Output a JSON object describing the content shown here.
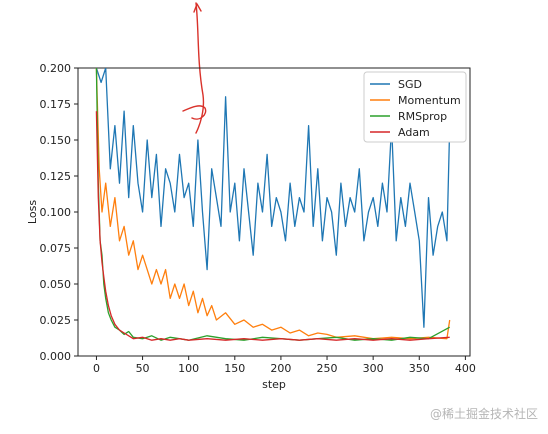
{
  "chart_data": {
    "type": "line",
    "title": "",
    "xlabel": "step",
    "ylabel": "Loss",
    "xlim": [
      -20,
      405
    ],
    "ylim": [
      0,
      0.2
    ],
    "xticks": [
      0,
      50,
      100,
      150,
      200,
      250,
      300,
      350,
      400
    ],
    "yticks": [
      0.0,
      0.025,
      0.05,
      0.075,
      0.1,
      0.125,
      0.15,
      0.175,
      0.2
    ],
    "ytick_labels": [
      "0.000",
      "0.025",
      "0.050",
      "0.075",
      "0.100",
      "0.125",
      "0.150",
      "0.175",
      "0.200"
    ],
    "grid": false,
    "legend_position": "top-right",
    "series": [
      {
        "name": "SGD",
        "color": "#1f77b4",
        "x": [
          0,
          5,
          10,
          15,
          20,
          25,
          30,
          35,
          40,
          45,
          50,
          55,
          60,
          65,
          70,
          75,
          80,
          85,
          90,
          95,
          100,
          105,
          110,
          115,
          120,
          125,
          130,
          135,
          140,
          145,
          150,
          155,
          160,
          165,
          170,
          175,
          180,
          185,
          190,
          195,
          200,
          205,
          210,
          215,
          220,
          225,
          230,
          235,
          240,
          245,
          250,
          255,
          260,
          265,
          270,
          275,
          280,
          285,
          290,
          295,
          300,
          305,
          310,
          315,
          320,
          325,
          330,
          335,
          340,
          345,
          350,
          355,
          360,
          365,
          370,
          375,
          380,
          383
        ],
        "y": [
          0.2,
          0.19,
          0.2,
          0.13,
          0.16,
          0.12,
          0.17,
          0.11,
          0.16,
          0.12,
          0.1,
          0.15,
          0.11,
          0.14,
          0.09,
          0.13,
          0.12,
          0.1,
          0.14,
          0.11,
          0.12,
          0.09,
          0.15,
          0.1,
          0.06,
          0.13,
          0.11,
          0.09,
          0.18,
          0.1,
          0.12,
          0.08,
          0.13,
          0.1,
          0.07,
          0.12,
          0.1,
          0.14,
          0.09,
          0.11,
          0.1,
          0.08,
          0.12,
          0.09,
          0.11,
          0.1,
          0.16,
          0.09,
          0.13,
          0.08,
          0.11,
          0.1,
          0.07,
          0.12,
          0.09,
          0.11,
          0.1,
          0.13,
          0.08,
          0.1,
          0.11,
          0.09,
          0.12,
          0.1,
          0.16,
          0.08,
          0.11,
          0.09,
          0.12,
          0.1,
          0.08,
          0.02,
          0.11,
          0.07,
          0.09,
          0.1,
          0.08,
          0.16
        ]
      },
      {
        "name": "Momentum",
        "color": "#ff7f0e",
        "x": [
          0,
          3,
          6,
          10,
          15,
          20,
          25,
          30,
          35,
          40,
          45,
          50,
          55,
          60,
          65,
          70,
          75,
          80,
          85,
          90,
          95,
          100,
          105,
          110,
          115,
          120,
          125,
          130,
          140,
          150,
          160,
          170,
          180,
          190,
          200,
          210,
          220,
          230,
          240,
          250,
          260,
          280,
          300,
          320,
          340,
          360,
          380,
          383
        ],
        "y": [
          0.2,
          0.13,
          0.1,
          0.12,
          0.09,
          0.11,
          0.08,
          0.09,
          0.07,
          0.08,
          0.06,
          0.07,
          0.06,
          0.05,
          0.06,
          0.05,
          0.06,
          0.04,
          0.05,
          0.04,
          0.05,
          0.035,
          0.045,
          0.03,
          0.04,
          0.028,
          0.035,
          0.025,
          0.03,
          0.022,
          0.025,
          0.02,
          0.022,
          0.018,
          0.02,
          0.016,
          0.018,
          0.014,
          0.016,
          0.015,
          0.013,
          0.014,
          0.012,
          0.013,
          0.012,
          0.013,
          0.012,
          0.025
        ]
      },
      {
        "name": "RMSprop",
        "color": "#2ca02c",
        "x": [
          0,
          2,
          4,
          6,
          8,
          10,
          13,
          16,
          20,
          25,
          30,
          35,
          40,
          50,
          60,
          70,
          80,
          90,
          100,
          120,
          140,
          160,
          180,
          200,
          220,
          240,
          260,
          280,
          300,
          320,
          340,
          360,
          383
        ],
        "y": [
          0.2,
          0.12,
          0.08,
          0.07,
          0.05,
          0.04,
          0.03,
          0.025,
          0.02,
          0.018,
          0.015,
          0.017,
          0.013,
          0.012,
          0.014,
          0.011,
          0.013,
          0.012,
          0.011,
          0.014,
          0.012,
          0.011,
          0.013,
          0.012,
          0.011,
          0.012,
          0.013,
          0.011,
          0.012,
          0.011,
          0.013,
          0.012,
          0.02
        ]
      },
      {
        "name": "Adam",
        "color": "#d62728",
        "x": [
          0,
          2,
          4,
          6,
          8,
          10,
          13,
          16,
          20,
          25,
          30,
          35,
          40,
          50,
          60,
          70,
          80,
          90,
          100,
          120,
          140,
          160,
          180,
          200,
          220,
          240,
          260,
          280,
          300,
          320,
          340,
          360,
          383
        ],
        "y": [
          0.17,
          0.11,
          0.08,
          0.065,
          0.055,
          0.045,
          0.035,
          0.028,
          0.022,
          0.018,
          0.016,
          0.014,
          0.012,
          0.013,
          0.011,
          0.012,
          0.011,
          0.012,
          0.011,
          0.012,
          0.011,
          0.012,
          0.011,
          0.012,
          0.011,
          0.012,
          0.011,
          0.012,
          0.011,
          0.012,
          0.011,
          0.012,
          0.013
        ]
      }
    ]
  },
  "watermark": "@稀土掘金技术社区"
}
